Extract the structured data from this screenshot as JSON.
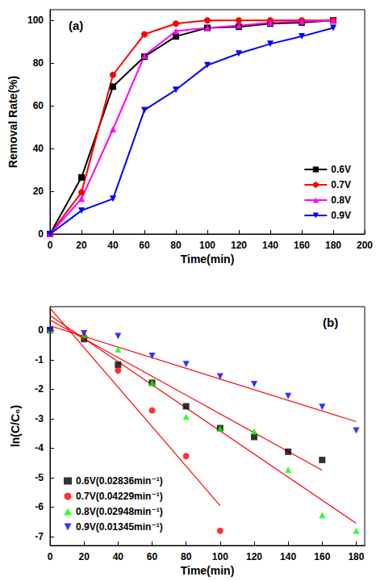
{
  "chart_data": [
    {
      "type": "line",
      "annotations": [
        "(a)"
      ],
      "x_label": "Time(min)",
      "y_label": "Removal Rate(%)",
      "x": [
        0,
        20,
        40,
        60,
        80,
        100,
        120,
        140,
        160,
        180
      ],
      "xlim": [
        0,
        200
      ],
      "xticks": [
        0,
        20,
        40,
        60,
        80,
        100,
        120,
        140,
        160,
        180,
        200
      ],
      "ylim": [
        0,
        105
      ],
      "yticks": [
        0,
        20,
        40,
        60,
        80,
        100
      ],
      "grid": false,
      "legend": "lower right",
      "series": [
        {
          "name": "0.6V",
          "color": "#000000",
          "marker": "square",
          "values": [
            0,
            26.5,
            69,
            83,
            92.5,
            96.5,
            97,
            98.5,
            99,
            100
          ]
        },
        {
          "name": "0.7V",
          "color": "#ff0000",
          "marker": "circle",
          "values": [
            0,
            19.5,
            74.5,
            93.5,
            98.5,
            100,
            100,
            100,
            100,
            100
          ]
        },
        {
          "name": "0.8V",
          "color": "#ff00ff",
          "marker": "triangle",
          "values": [
            0,
            16.5,
            49,
            83.5,
            95,
            96.5,
            97.5,
            99,
            99.5,
            100
          ]
        },
        {
          "name": "0.9V",
          "color": "#0000ff",
          "marker": "triangle_down",
          "values": [
            0,
            11,
            16.5,
            58,
            67.5,
            79,
            84.5,
            89,
            92.5,
            96.5
          ]
        }
      ]
    },
    {
      "type": "scatter",
      "annotations": [
        "(b)"
      ],
      "x_label": "Time(min)",
      "y_label": "ln(C/C₀)",
      "xlim": [
        0,
        185
      ],
      "xticks": [
        0,
        20,
        40,
        60,
        80,
        100,
        120,
        140,
        160,
        180
      ],
      "ylim": [
        -7.3,
        0.8
      ],
      "yticks": [
        -7,
        -6,
        -5,
        -4,
        -3,
        -2,
        -1,
        0
      ],
      "grid": false,
      "legend": "lower left",
      "series": [
        {
          "name": "0.6V(0.02836min⁻¹)",
          "color": "#000000",
          "marker": "square",
          "x": [
            0,
            20,
            40,
            60,
            80,
            100,
            120,
            140,
            160
          ],
          "values": [
            0,
            -0.3,
            -1.17,
            -1.78,
            -2.58,
            -3.32,
            -3.62,
            -4.12,
            -4.4
          ]
        },
        {
          "name": "0.7V(0.04229min⁻¹)",
          "color": "#ff0000",
          "marker": "circle",
          "x": [
            0,
            20,
            40,
            60,
            80,
            100
          ],
          "values": [
            0,
            -0.22,
            -1.36,
            -2.72,
            -4.27,
            -6.8
          ]
        },
        {
          "name": "0.8V(0.02948min⁻¹)",
          "color": "#00ff00",
          "marker": "triangle",
          "x": [
            0,
            20,
            40,
            60,
            80,
            100,
            120,
            140,
            160,
            180
          ],
          "values": [
            0,
            -0.15,
            -0.65,
            -1.78,
            -2.93,
            -3.33,
            -3.43,
            -4.73,
            -6.27,
            -6.8
          ]
        },
        {
          "name": "0.9V(0.01345min⁻¹)",
          "color": "#0000ff",
          "marker": "triangle_down",
          "x": [
            0,
            20,
            40,
            60,
            80,
            100,
            120,
            140,
            160,
            180
          ],
          "values": [
            0,
            -0.1,
            -0.2,
            -0.87,
            -1.15,
            -1.57,
            -1.83,
            -2.23,
            -2.6,
            -3.4
          ]
        },
        {
          "type": "line",
          "color": "#ff0000",
          "x": [
            0,
            160
          ],
          "values": [
            0.35,
            -4.75
          ]
        },
        {
          "type": "line",
          "color": "#ff0000",
          "x": [
            0,
            100
          ],
          "values": [
            0.75,
            -5.95
          ]
        },
        {
          "type": "line",
          "color": "#ff0000",
          "x": [
            0,
            180
          ],
          "values": [
            0.5,
            -6.55
          ]
        },
        {
          "type": "line",
          "color": "#ff0000",
          "x": [
            0,
            180
          ],
          "values": [
            0.15,
            -3.1
          ]
        }
      ]
    }
  ]
}
